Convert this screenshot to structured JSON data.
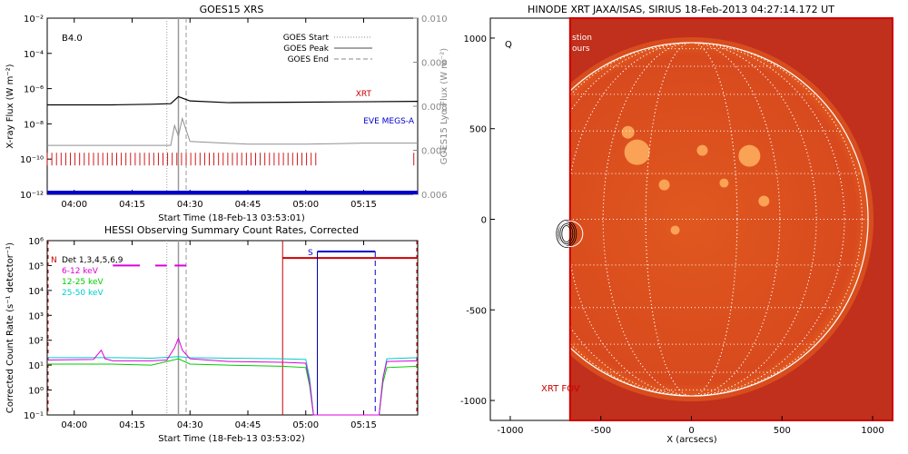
{
  "colors": {
    "goes_long": "#000000",
    "goes_short": "#909090",
    "eve": "#0000cc",
    "xrt_marker": "#cc0000",
    "hsr_det": "#000000",
    "c6_12": "#dd00dd",
    "c12_25": "#00cc00",
    "c25_50": "#00cccc",
    "sun_red": "#c0301c",
    "sun_fill": "#d84a1e"
  },
  "chart_data": [
    {
      "id": "goes",
      "type": "line",
      "title": "GOES15 XRS",
      "xlabel": "Start Time (18-Feb-13 03:53:01)",
      "ylabel": "X-ray Flux (W m⁻²)",
      "y2label": "GOES15 Lyα Flux (W m⁻²)",
      "xlim": [
        "03:53",
        "05:29"
      ],
      "x_ticks": [
        "04:00",
        "04:15",
        "04:30",
        "04:45",
        "05:00",
        "05:15"
      ],
      "ylog": true,
      "ylim": [
        1e-12,
        0.01
      ],
      "y_ticks": [
        "10⁻¹²",
        "10⁻¹⁰",
        "10⁻⁸",
        "10⁻⁶",
        "10⁻⁴",
        "10⁻²"
      ],
      "y2lim": [
        0.006,
        0.01
      ],
      "y2_ticks": [
        "0.006",
        "0.007",
        "0.008",
        "0.009",
        "0.010"
      ],
      "class_label": "B4.0",
      "legend": [
        {
          "label": "GOES Start",
          "style": "dotted"
        },
        {
          "label": "GOES Peak",
          "style": "solid"
        },
        {
          "label": "GOES End",
          "style": "dashed"
        }
      ],
      "annotations": [
        {
          "label": "XRT"
        },
        {
          "label": "EVE MEGS-A"
        }
      ],
      "event_times": {
        "start": "04:24",
        "peak": "04:27",
        "end": "04:29"
      },
      "series": [
        {
          "name": "long",
          "x": [
            "03:53",
            "04:10",
            "04:20",
            "04:25",
            "04:27",
            "04:30",
            "04:40",
            "05:00",
            "05:15",
            "05:29"
          ],
          "y": [
            1.2e-07,
            1.2e-07,
            1.3e-07,
            1.4e-07,
            3.5e-07,
            2e-07,
            1.6e-07,
            1.7e-07,
            1.8e-07,
            1.9e-07
          ]
        },
        {
          "name": "short",
          "x": [
            "03:53",
            "04:10",
            "04:20",
            "04:25",
            "04:26",
            "04:27",
            "04:28",
            "04:30",
            "04:45",
            "05:00",
            "05:15",
            "05:29"
          ],
          "y": [
            6e-10,
            6e-10,
            6e-10,
            6e-10,
            8e-09,
            2e-09,
            2e-08,
            1e-09,
            7e-10,
            7e-10,
            8e-10,
            8e-10
          ]
        }
      ],
      "xrt_obs_ranges": [
        [
          "03:53",
          "05:03"
        ],
        [
          "05:28",
          "05:29"
        ]
      ],
      "eve_level": 1e-12
    },
    {
      "id": "hessi",
      "type": "line",
      "title": "HESSI Observing Summary Count Rates, Corrected",
      "xlabel": "Start Time (18-Feb-13 03:53:02)",
      "ylabel": "Corrected Count Rate (s⁻¹ detector⁻¹)",
      "xlim": [
        "03:53",
        "05:29"
      ],
      "x_ticks": [
        "04:00",
        "04:15",
        "04:30",
        "04:45",
        "05:00",
        "05:15"
      ],
      "ylog": true,
      "ylim": [
        0.1,
        1000000.0
      ],
      "y_ticks": [
        "10⁻¹",
        "10⁰",
        "10¹",
        "10²",
        "10³",
        "10⁴",
        "10⁵",
        "10⁶"
      ],
      "legend": [
        {
          "label": "Det 1,3,4,5,6,9",
          "color": "#000000"
        },
        {
          "label": "6-12 keV",
          "color": "#dd00dd"
        },
        {
          "label": "12-25 keV",
          "color": "#00cc00"
        },
        {
          "label": "25-50 keV",
          "color": "#00cccc"
        }
      ],
      "markers": [
        {
          "label": "N"
        },
        {
          "label": "S"
        }
      ],
      "event_times": {
        "start": "04:24",
        "peak": "04:27",
        "end": "04:29"
      },
      "night_start": "04:54",
      "saa_range": [
        "05:03",
        "05:18"
      ],
      "series": [
        {
          "name": "6-12 keV",
          "x": [
            "03:53",
            "04:05",
            "04:07",
            "04:08",
            "04:10",
            "04:20",
            "04:24",
            "04:26",
            "04:27",
            "04:28",
            "04:30",
            "04:40",
            "04:54",
            "05:00",
            "05:01",
            "05:02",
            "05:19",
            "05:20",
            "05:21",
            "05:29"
          ],
          "y": [
            16,
            17,
            40,
            18,
            15,
            15,
            16,
            50,
            120,
            40,
            18,
            14,
            13,
            12,
            2,
            0.1,
            0.1,
            3,
            14,
            15
          ]
        },
        {
          "name": "12-25 keV",
          "x": [
            "03:53",
            "04:10",
            "04:20",
            "04:27",
            "04:30",
            "04:40",
            "04:54",
            "05:00",
            "05:01",
            "05:02",
            "05:19",
            "05:20",
            "05:21",
            "05:29"
          ],
          "y": [
            11,
            11,
            10,
            18,
            11,
            10,
            9,
            8,
            1.5,
            0.1,
            0.1,
            2,
            8,
            9
          ]
        },
        {
          "name": "25-50 keV",
          "x": [
            "03:53",
            "04:10",
            "04:20",
            "04:27",
            "04:30",
            "04:40",
            "04:54",
            "05:00",
            "05:01",
            "05:02",
            "05:19",
            "05:20",
            "05:21",
            "05:29"
          ],
          "y": [
            20,
            20,
            19,
            22,
            20,
            19,
            18,
            17,
            3,
            0.1,
            0.1,
            3,
            18,
            20
          ]
        }
      ]
    },
    {
      "id": "xrt",
      "type": "image",
      "title": "HINODE XRT JAXA/ISAS, SIRIUS 18-Feb-2013 04:27:14.172 UT",
      "xlabel": "X (arcsecs)",
      "x_ticks": [
        "-1000",
        "-500",
        "0",
        "500",
        "1000"
      ],
      "y_ticks": [
        "-1000",
        "-500",
        "0",
        "500",
        "1000"
      ],
      "xlim": [
        -1110,
        1110
      ],
      "ylim": [
        -1110,
        1110
      ],
      "fov_label": "XRT FOV",
      "fov_x": [
        -670,
        1110
      ],
      "sun_radius": 975,
      "legend_fragments": [
        "stion",
        "ours"
      ],
      "markers": [
        {
          "label": "Q"
        }
      ]
    }
  ]
}
